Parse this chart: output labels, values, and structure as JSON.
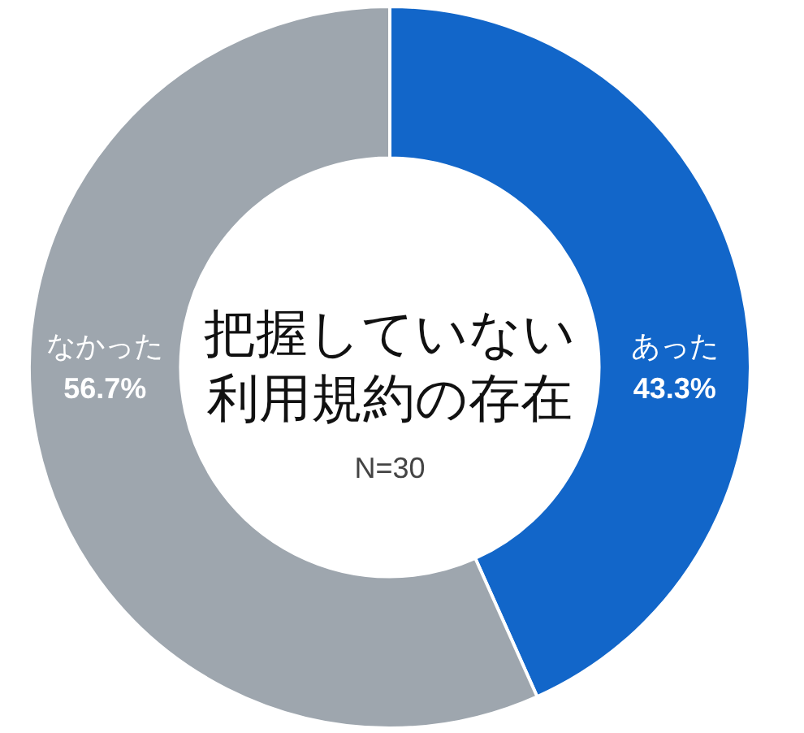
{
  "chart_data": {
    "type": "donut",
    "title": "把握していない利用規約の存在",
    "categories": [
      "あった",
      "なかった"
    ],
    "values": [
      43.3,
      56.7
    ],
    "colors": [
      "#1266c9",
      "#9ea6ae"
    ],
    "value_labels": [
      "43.3%",
      "56.7%"
    ],
    "annotations": [
      "N=30"
    ]
  }
}
